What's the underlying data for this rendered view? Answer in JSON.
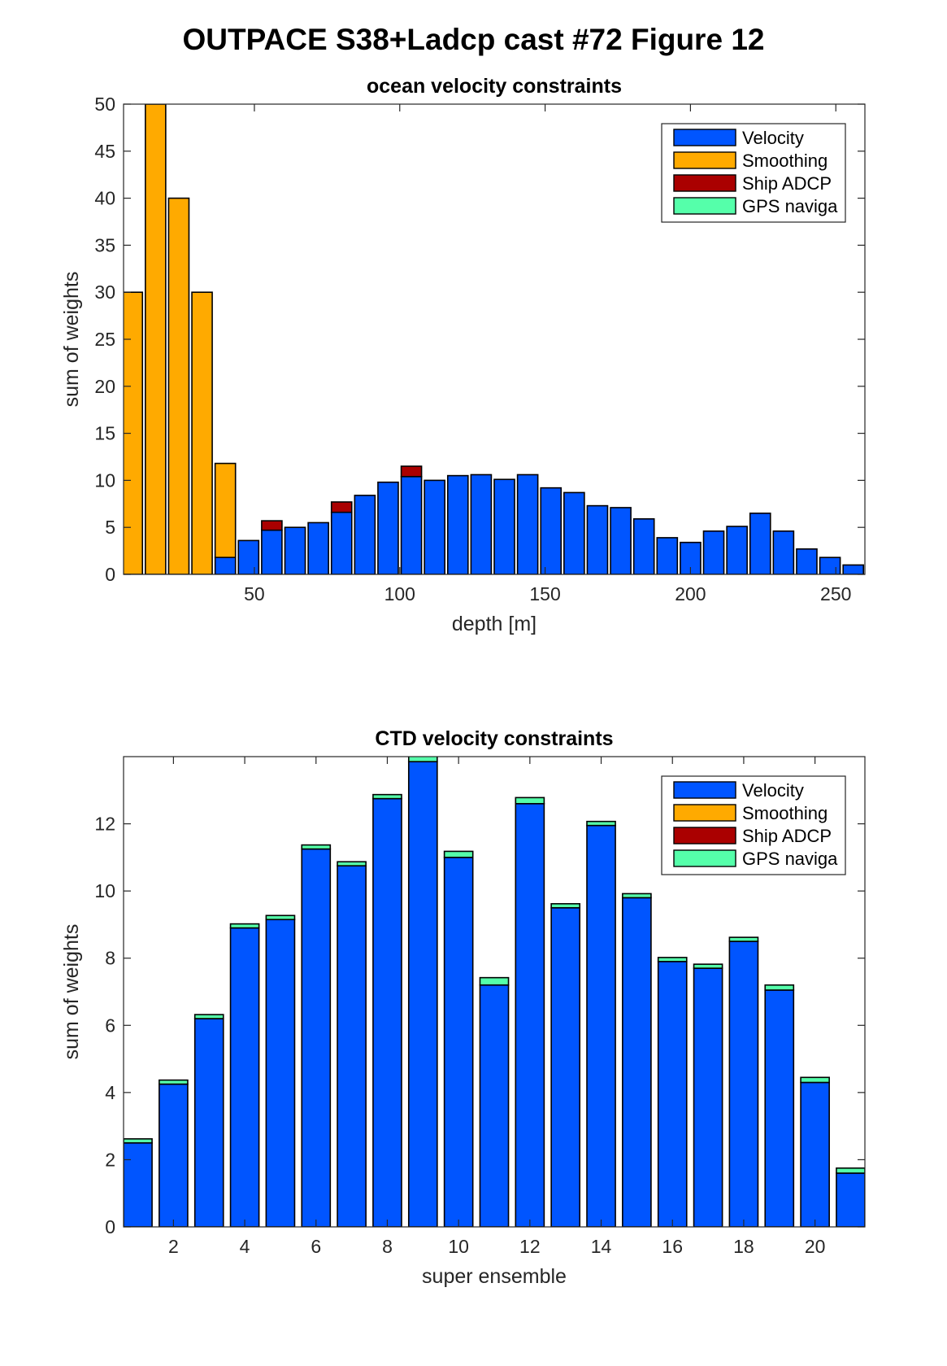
{
  "figure_title": "OUTPACE S38+Ladcp cast #72  Figure 12",
  "colors": {
    "velocity": "#0055ff",
    "smoothing": "#ffaa00",
    "ship_adcp": "#aa0000",
    "gps": "#55ffaa"
  },
  "chart_data": [
    {
      "type": "bar",
      "stacked": true,
      "title": "ocean velocity constraints",
      "xlabel": "depth [m]",
      "ylabel": "sum of weights",
      "xlim": [
        5,
        260
      ],
      "ylim": [
        0,
        50
      ],
      "xticks": [
        50,
        100,
        150,
        200,
        250
      ],
      "yticks": [
        0,
        5,
        10,
        15,
        20,
        25,
        30,
        35,
        40,
        45,
        50
      ],
      "bar_width": 7,
      "legend_position": "top-right",
      "x": [
        8,
        16,
        24,
        32,
        40,
        48,
        56,
        64,
        72,
        80,
        88,
        96,
        104,
        112,
        120,
        128,
        136,
        144,
        152,
        160,
        168,
        176,
        184,
        192,
        200,
        208,
        216,
        224,
        232,
        240,
        248,
        256
      ],
      "series": [
        {
          "name": "Velocity",
          "color_key": "velocity",
          "values": [
            0,
            0,
            0,
            0,
            1.8,
            3.6,
            4.7,
            5.0,
            5.5,
            6.6,
            8.4,
            9.8,
            10.4,
            10.0,
            10.5,
            10.6,
            10.1,
            10.6,
            9.2,
            8.7,
            7.3,
            7.1,
            5.9,
            3.9,
            3.4,
            4.6,
            5.1,
            6.5,
            4.6,
            2.7,
            1.8,
            1.0
          ]
        },
        {
          "name": "Smoothing",
          "color_key": "smoothing",
          "values": [
            30,
            50,
            40,
            30,
            10,
            0,
            0,
            0,
            0,
            0,
            0,
            0,
            0,
            0,
            0,
            0,
            0,
            0,
            0,
            0,
            0,
            0,
            0,
            0,
            0,
            0,
            0,
            0,
            0,
            0,
            0,
            0
          ]
        },
        {
          "name": "Ship ADCP",
          "color_key": "ship_adcp",
          "values": [
            0,
            0,
            0,
            0,
            0,
            0,
            1.0,
            0,
            0,
            1.1,
            0,
            0,
            1.1,
            0,
            0,
            0,
            0,
            0,
            0,
            0,
            0,
            0,
            0,
            0,
            0,
            0,
            0,
            0,
            0,
            0,
            0,
            0
          ]
        },
        {
          "name": "GPS naviga",
          "color_key": "gps",
          "values": [
            0,
            0,
            0,
            0,
            0,
            0,
            0,
            0,
            0,
            0,
            0,
            0,
            0,
            0,
            0,
            0,
            0,
            0,
            0,
            0,
            0,
            0,
            0,
            0,
            0,
            0,
            0,
            0,
            0,
            0,
            0,
            0
          ]
        }
      ]
    },
    {
      "type": "bar",
      "stacked": true,
      "title": "CTD velocity constraints",
      "xlabel": "super ensemble",
      "ylabel": "sum of weights",
      "xlim": [
        0.6,
        21.4
      ],
      "ylim": [
        0,
        14
      ],
      "xticks": [
        2,
        4,
        6,
        8,
        10,
        12,
        14,
        16,
        18,
        20
      ],
      "yticks": [
        0,
        2,
        4,
        6,
        8,
        10,
        12
      ],
      "bar_width": 0.8,
      "legend_position": "top-right",
      "x": [
        1,
        2,
        3,
        4,
        5,
        6,
        7,
        8,
        9,
        10,
        11,
        12,
        13,
        14,
        15,
        16,
        17,
        18,
        19,
        20,
        21
      ],
      "series": [
        {
          "name": "Velocity",
          "color_key": "velocity",
          "values": [
            2.5,
            4.25,
            6.2,
            8.9,
            9.15,
            11.25,
            10.75,
            12.75,
            13.85,
            11.0,
            7.2,
            12.6,
            9.5,
            11.95,
            9.8,
            7.9,
            7.7,
            8.5,
            7.05,
            4.3,
            1.6
          ]
        },
        {
          "name": "Smoothing",
          "color_key": "smoothing",
          "values": [
            0,
            0,
            0,
            0,
            0,
            0,
            0,
            0,
            0,
            0,
            0,
            0,
            0,
            0,
            0,
            0,
            0,
            0,
            0,
            0,
            0
          ]
        },
        {
          "name": "Ship ADCP",
          "color_key": "ship_adcp",
          "values": [
            0,
            0,
            0,
            0,
            0,
            0,
            0,
            0,
            0,
            0,
            0,
            0,
            0,
            0,
            0,
            0,
            0,
            0,
            0,
            0,
            0
          ]
        },
        {
          "name": "GPS naviga",
          "color_key": "gps",
          "values": [
            0.12,
            0.12,
            0.12,
            0.12,
            0.12,
            0.12,
            0.12,
            0.12,
            0.3,
            0.18,
            0.22,
            0.18,
            0.12,
            0.12,
            0.12,
            0.12,
            0.12,
            0.12,
            0.15,
            0.15,
            0.15
          ]
        }
      ]
    }
  ]
}
